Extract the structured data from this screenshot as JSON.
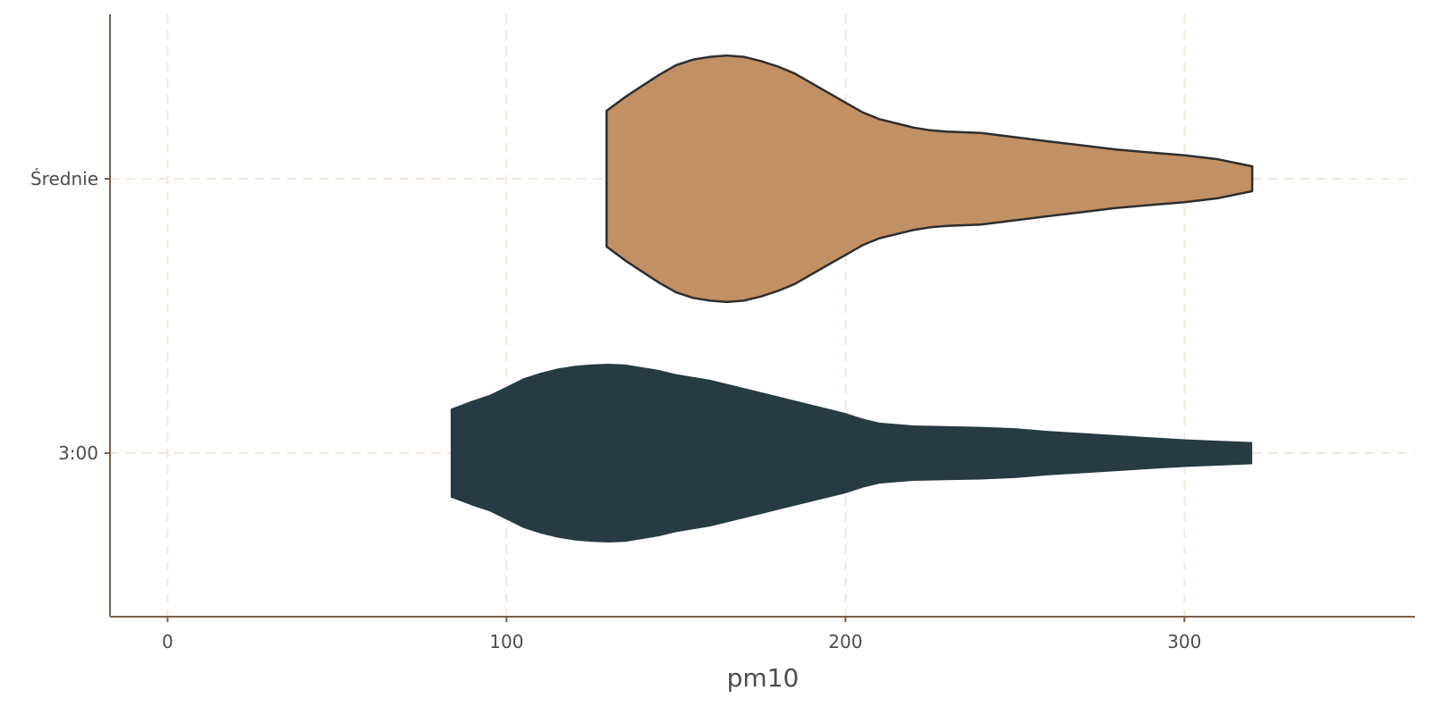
{
  "chart_data": {
    "type": "violin",
    "orientation": "horizontal",
    "title": "",
    "xlabel": "pm10",
    "ylabel": "",
    "xlim": [
      -17,
      368
    ],
    "xticks": [
      0,
      100,
      200,
      300
    ],
    "xtick_labels": [
      "0",
      "100",
      "200",
      "300"
    ],
    "grid": "dashed",
    "legend": "none",
    "colors": {
      "grid": "#f2e6d9",
      "axis": "#7a6048",
      "outline": "#2e2e2e"
    },
    "categories": [
      "Średnie",
      "3:00"
    ],
    "series": [
      {
        "category": "Średnie",
        "color": "#c19064",
        "outlined": true,
        "range": [
          129.5,
          320
        ],
        "profile": [
          [
            129.5,
            0.49
          ],
          [
            135,
            0.59
          ],
          [
            140,
            0.67
          ],
          [
            145,
            0.75
          ],
          [
            150,
            0.82
          ],
          [
            155,
            0.86
          ],
          [
            160,
            0.88
          ],
          [
            165,
            0.89
          ],
          [
            170,
            0.88
          ],
          [
            175,
            0.85
          ],
          [
            180,
            0.81
          ],
          [
            185,
            0.76
          ],
          [
            190,
            0.69
          ],
          [
            195,
            0.62
          ],
          [
            200,
            0.55
          ],
          [
            205,
            0.48
          ],
          [
            210,
            0.43
          ],
          [
            215,
            0.4
          ],
          [
            220,
            0.37
          ],
          [
            225,
            0.35
          ],
          [
            230,
            0.34
          ],
          [
            240,
            0.33
          ],
          [
            250,
            0.3
          ],
          [
            260,
            0.27
          ],
          [
            270,
            0.24
          ],
          [
            280,
            0.21
          ],
          [
            290,
            0.19
          ],
          [
            300,
            0.17
          ],
          [
            310,
            0.14
          ],
          [
            320,
            0.09
          ]
        ]
      },
      {
        "category": "3:00",
        "color": "#263b42",
        "outlined": false,
        "range": [
          83.5,
          320
        ],
        "profile": [
          [
            83.5,
            0.32
          ],
          [
            90,
            0.38
          ],
          [
            95,
            0.42
          ],
          [
            100,
            0.48
          ],
          [
            105,
            0.54
          ],
          [
            110,
            0.58
          ],
          [
            115,
            0.61
          ],
          [
            120,
            0.63
          ],
          [
            125,
            0.64
          ],
          [
            130,
            0.645
          ],
          [
            135,
            0.64
          ],
          [
            140,
            0.62
          ],
          [
            145,
            0.6
          ],
          [
            150,
            0.57
          ],
          [
            155,
            0.55
          ],
          [
            160,
            0.53
          ],
          [
            165,
            0.5
          ],
          [
            170,
            0.47
          ],
          [
            175,
            0.44
          ],
          [
            180,
            0.41
          ],
          [
            185,
            0.38
          ],
          [
            190,
            0.35
          ],
          [
            195,
            0.32
          ],
          [
            200,
            0.29
          ],
          [
            205,
            0.25
          ],
          [
            210,
            0.22
          ],
          [
            215,
            0.21
          ],
          [
            220,
            0.2
          ],
          [
            230,
            0.195
          ],
          [
            240,
            0.19
          ],
          [
            250,
            0.18
          ],
          [
            260,
            0.16
          ],
          [
            270,
            0.145
          ],
          [
            280,
            0.13
          ],
          [
            290,
            0.115
          ],
          [
            300,
            0.1
          ],
          [
            310,
            0.09
          ],
          [
            320,
            0.08
          ]
        ]
      }
    ]
  }
}
